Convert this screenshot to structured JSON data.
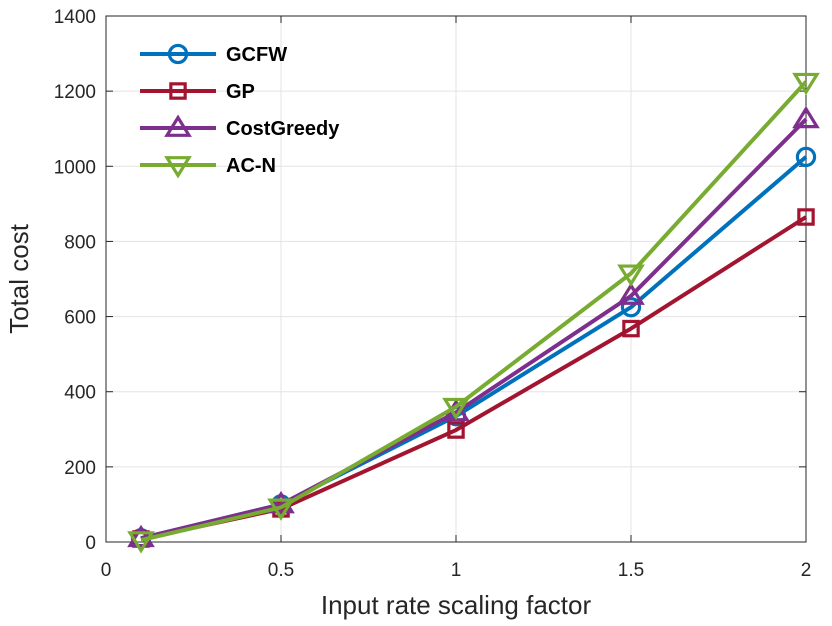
{
  "chart_data": {
    "type": "line",
    "title": "",
    "xlabel": "Input rate scaling factor",
    "ylabel": "Total cost",
    "xlim": [
      0,
      2
    ],
    "ylim": [
      0,
      1400
    ],
    "xticks": [
      0,
      0.5,
      1,
      1.5,
      2
    ],
    "xtick_labels": [
      "0",
      "0.5",
      "1",
      "1.5",
      "2"
    ],
    "yticks": [
      0,
      200,
      400,
      600,
      800,
      1000,
      1200,
      1400
    ],
    "ytick_labels": [
      "0",
      "200",
      "400",
      "600",
      "800",
      "1000",
      "1200",
      "1400"
    ],
    "grid": true,
    "legend_position": "top-left",
    "x": [
      0.1,
      0.5,
      1,
      1.5,
      2
    ],
    "series": [
      {
        "name": "GCFW",
        "marker": "circle",
        "color": "#0072BD",
        "values": [
          10,
          100,
          335,
          625,
          1025
        ]
      },
      {
        "name": "GP",
        "marker": "square",
        "color": "#A2142F",
        "values": [
          8,
          88,
          298,
          568,
          865
        ]
      },
      {
        "name": "CostGreedy",
        "marker": "triangle-up",
        "color": "#7E2F8E",
        "values": [
          10,
          100,
          345,
          655,
          1125
        ]
      },
      {
        "name": "AC-N",
        "marker": "triangle-down",
        "color": "#77AC30",
        "values": [
          5,
          92,
          360,
          715,
          1225
        ]
      }
    ]
  }
}
